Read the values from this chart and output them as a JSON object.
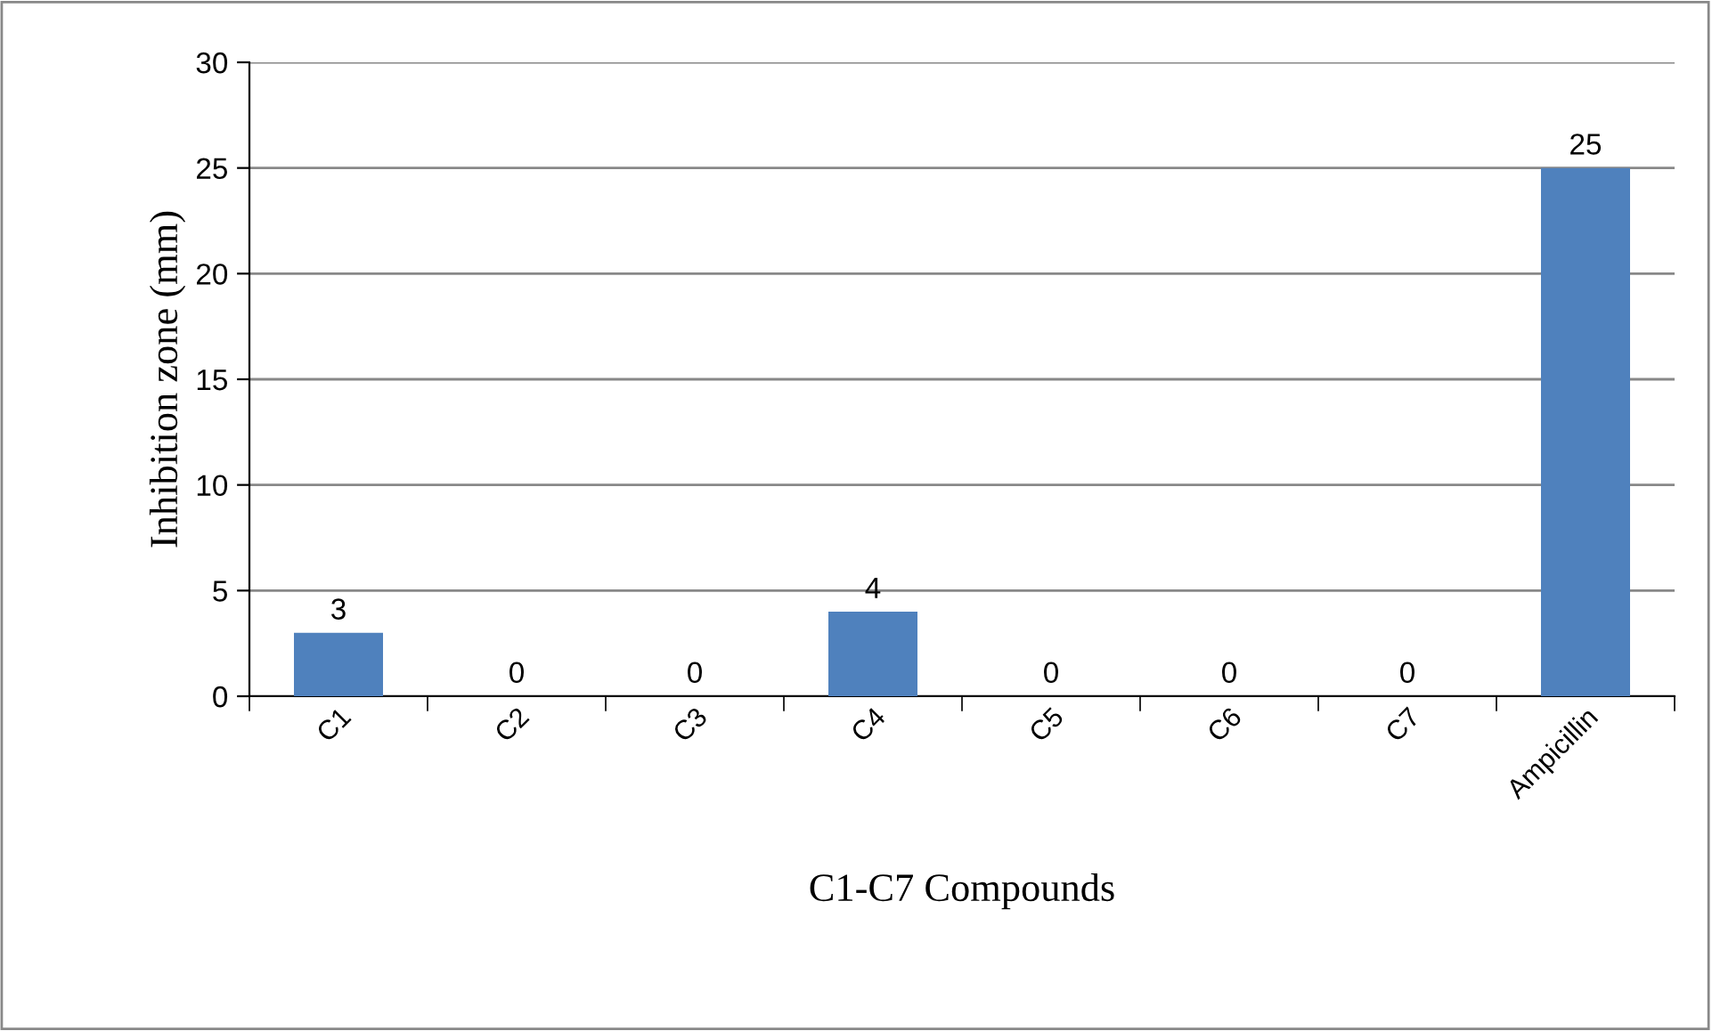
{
  "chart_data": {
    "type": "bar",
    "xlabel": "C1-C7 Compounds",
    "ylabel": "Inhibition zone (mm)",
    "categories": [
      "C1",
      "C2",
      "C3",
      "C4",
      "C5",
      "C6",
      "C7",
      "Ampicillin"
    ],
    "values": [
      3,
      0,
      0,
      4,
      0,
      0,
      0,
      25
    ],
    "color": "#4f81bd",
    "ylim": [
      0,
      30
    ],
    "yticks": [
      0,
      5,
      10,
      15,
      20,
      25,
      30
    ],
    "grid": "y",
    "data_labels": true
  }
}
